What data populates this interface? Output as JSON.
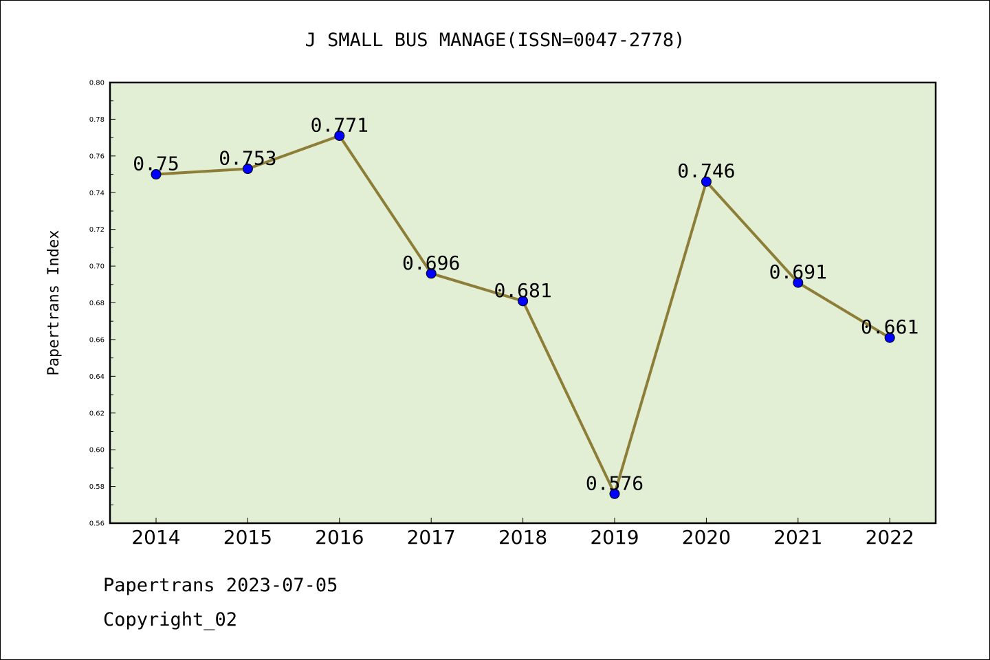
{
  "chart_data": {
    "type": "line",
    "title": "J SMALL BUS MANAGE(ISSN=0047-2778)",
    "xlabel": "",
    "ylabel": "Papertrans Index",
    "categories": [
      "2014",
      "2015",
      "2016",
      "2017",
      "2018",
      "2019",
      "2020",
      "2021",
      "2022"
    ],
    "series": [
      {
        "values": [
          0.75,
          0.753,
          0.771,
          0.696,
          0.681,
          0.576,
          0.746,
          0.691,
          0.661
        ],
        "labels": [
          "0.75",
          "0.753",
          "0.771",
          "0.696",
          "0.681",
          "0.576",
          "0.746",
          "0.691",
          "0.661"
        ]
      }
    ],
    "ylim": [
      0.56,
      0.8
    ],
    "yticks": [
      "0.56",
      "0.58",
      "0.60",
      "0.62",
      "0.64",
      "0.66",
      "0.68",
      "0.70",
      "0.72",
      "0.74",
      "0.76",
      "0.78",
      "0.80"
    ],
    "grid": false,
    "legend": "none",
    "colors": {
      "plot_background": "#e2efd5",
      "line": "#8c7d37",
      "marker": "#0000ff"
    }
  },
  "footer": {
    "line1": "Papertrans 2023-07-05",
    "line2": "Copyright_02"
  }
}
